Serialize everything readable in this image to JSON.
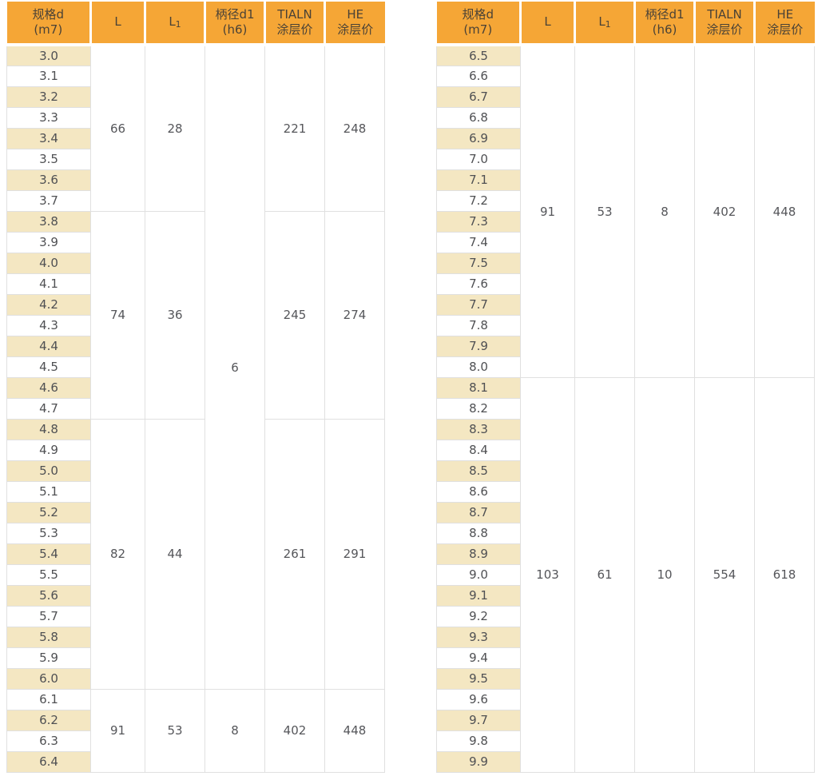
{
  "colors": {
    "header_bg": "#F5A636",
    "header_text": "#4A4236",
    "stripe_bg": "#F4E7C2",
    "cell_text": "#55565A",
    "border": "#E0E0E0"
  },
  "headers": [
    {
      "key": "size",
      "lines": [
        "规格d",
        "(m7)"
      ]
    },
    {
      "key": "L",
      "lines": [
        "L"
      ]
    },
    {
      "key": "L1",
      "lines": [
        "L"
      ],
      "sub": "1"
    },
    {
      "key": "d1",
      "lines": [
        "柄径d1",
        "(h6)"
      ]
    },
    {
      "key": "TIALN",
      "lines": [
        "TIALN",
        "涂层价"
      ]
    },
    {
      "key": "HE",
      "lines": [
        "HE",
        "涂层价"
      ]
    }
  ],
  "tables": [
    {
      "name": "left",
      "sizes": [
        "3.0",
        "3.1",
        "3.2",
        "3.3",
        "3.4",
        "3.5",
        "3.6",
        "3.7",
        "3.8",
        "3.9",
        "4.0",
        "4.1",
        "4.2",
        "4.3",
        "4.4",
        "4.5",
        "4.6",
        "4.7",
        "4.8",
        "4.9",
        "5.0",
        "5.1",
        "5.2",
        "5.3",
        "5.4",
        "5.5",
        "5.6",
        "5.7",
        "5.8",
        "5.9",
        "6.0",
        "6.1",
        "6.2",
        "6.3",
        "6.4"
      ],
      "columns": [
        {
          "key": "L",
          "segments": [
            {
              "span": 8,
              "value": "66"
            },
            {
              "span": 10,
              "value": "74"
            },
            {
              "span": 13,
              "value": "82"
            },
            {
              "span": 4,
              "value": "91"
            }
          ]
        },
        {
          "key": "L1",
          "segments": [
            {
              "span": 8,
              "value": "28"
            },
            {
              "span": 10,
              "value": "36"
            },
            {
              "span": 13,
              "value": "44"
            },
            {
              "span": 4,
              "value": "53"
            }
          ]
        },
        {
          "key": "d1",
          "segments": [
            {
              "span": 31,
              "value": "6"
            },
            {
              "span": 4,
              "value": "8"
            }
          ]
        },
        {
          "key": "TIALN",
          "segments": [
            {
              "span": 8,
              "value": "221"
            },
            {
              "span": 10,
              "value": "245"
            },
            {
              "span": 13,
              "value": "261"
            },
            {
              "span": 4,
              "value": "402"
            }
          ]
        },
        {
          "key": "HE",
          "segments": [
            {
              "span": 8,
              "value": "248"
            },
            {
              "span": 10,
              "value": "274"
            },
            {
              "span": 13,
              "value": "291"
            },
            {
              "span": 4,
              "value": "448"
            }
          ]
        }
      ]
    },
    {
      "name": "right",
      "sizes": [
        "6.5",
        "6.6",
        "6.7",
        "6.8",
        "6.9",
        "7.0",
        "7.1",
        "7.2",
        "7.3",
        "7.4",
        "7.5",
        "7.6",
        "7.7",
        "7.8",
        "7.9",
        "8.0",
        "8.1",
        "8.2",
        "8.3",
        "8.4",
        "8.5",
        "8.6",
        "8.7",
        "8.8",
        "8.9",
        "9.0",
        "9.1",
        "9.2",
        "9.3",
        "9.4",
        "9.5",
        "9.6",
        "9.7",
        "9.8",
        "9.9"
      ],
      "columns": [
        {
          "key": "L",
          "segments": [
            {
              "span": 16,
              "value": "91"
            },
            {
              "span": 19,
              "value": "103"
            }
          ]
        },
        {
          "key": "L1",
          "segments": [
            {
              "span": 16,
              "value": "53"
            },
            {
              "span": 19,
              "value": "61"
            }
          ]
        },
        {
          "key": "d1",
          "segments": [
            {
              "span": 16,
              "value": "8"
            },
            {
              "span": 19,
              "value": "10"
            }
          ]
        },
        {
          "key": "TIALN",
          "segments": [
            {
              "span": 16,
              "value": "402"
            },
            {
              "span": 19,
              "value": "554"
            }
          ]
        },
        {
          "key": "HE",
          "segments": [
            {
              "span": 16,
              "value": "448"
            },
            {
              "span": 19,
              "value": "618"
            }
          ]
        }
      ]
    }
  ]
}
